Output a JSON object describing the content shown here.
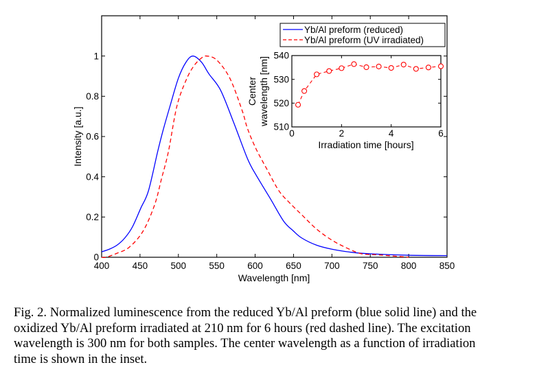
{
  "chart_data": [
    {
      "type": "line",
      "title": "",
      "xlabel": "Wavelength  [nm]",
      "ylabel": "Intensity  [a.u.]",
      "xlim": [
        400,
        850
      ],
      "ylim": [
        0,
        1.2
      ],
      "xticks": [
        400,
        450,
        500,
        550,
        600,
        650,
        700,
        750,
        800,
        850
      ],
      "xtick_labels": [
        "400",
        "450",
        "500",
        "550",
        "600",
        "650",
        "700",
        "750",
        "800",
        "850"
      ],
      "yticks": [
        0,
        0.2,
        0.4,
        0.6,
        0.8,
        1
      ],
      "ytick_labels": [
        "0",
        "0.2",
        "0.4",
        "0.6",
        "0.8",
        "1"
      ],
      "grid": false,
      "legend": {
        "placement": "top-right"
      },
      "series": [
        {
          "name": "Yb/Al preform (reduced)",
          "color": "#0000ff",
          "style": "solid",
          "x": [
            400,
            410,
            420,
            430,
            440,
            451,
            461,
            473,
            480,
            489,
            500,
            510,
            519,
            530,
            540,
            555,
            572,
            590,
            601,
            620,
            637,
            650,
            661,
            680,
            700,
            725,
            751,
            800,
            850
          ],
          "y": [
            0.027,
            0.04,
            0.06,
            0.095,
            0.15,
            0.244,
            0.33,
            0.525,
            0.63,
            0.75,
            0.89,
            0.97,
            1.0,
            0.97,
            0.91,
            0.83,
            0.67,
            0.49,
            0.41,
            0.29,
            0.18,
            0.13,
            0.095,
            0.06,
            0.04,
            0.025,
            0.017,
            0.01,
            0.008
          ]
        },
        {
          "name": "Yb/Al preform (UV irradiated)",
          "color": "#ff0000",
          "style": "dashed",
          "x": [
            400,
            406,
            420,
            436,
            454,
            469,
            478,
            487,
            498,
            510,
            520,
            530,
            537,
            550,
            567,
            583,
            590,
            601,
            615,
            631,
            645,
            661,
            680,
            700,
            720,
            739,
            760,
            800
          ],
          "y": [
            0.0,
            0.0,
            0.02,
            0.05,
            0.13,
            0.26,
            0.39,
            0.525,
            0.75,
            0.88,
            0.95,
            0.99,
            1.0,
            0.98,
            0.89,
            0.73,
            0.64,
            0.54,
            0.44,
            0.33,
            0.27,
            0.21,
            0.14,
            0.085,
            0.045,
            0.017,
            0.012,
            0.0
          ]
        }
      ]
    },
    {
      "type": "line",
      "title": "inset",
      "xlabel": "Irradiation time  [hours]",
      "ylabel_lines": [
        "Center",
        "wavelength  [nm]"
      ],
      "xlim": [
        0,
        6
      ],
      "ylim": [
        510,
        540
      ],
      "xticks": [
        0,
        2,
        4,
        6
      ],
      "xtick_labels": [
        "0",
        "2",
        "4",
        "6"
      ],
      "yticks": [
        510,
        520,
        530,
        540
      ],
      "ytick_labels": [
        "510",
        "520",
        "530",
        "540"
      ],
      "grid": false,
      "series": [
        {
          "name": "Center wavelength",
          "color": "#ff0000",
          "style": "dashed",
          "marker": "circle",
          "x": [
            0.25,
            0.5,
            1.0,
            1.5,
            2.0,
            2.5,
            3.0,
            3.5,
            4.0,
            4.5,
            5.0,
            5.5,
            6.0
          ],
          "y": [
            519.3,
            525.1,
            532.1,
            533.5,
            534.7,
            536.4,
            535.1,
            535.4,
            534.8,
            536.2,
            534.4,
            535.0,
            535.5
          ]
        }
      ]
    }
  ],
  "caption": {
    "lines": [
      "Fig. 2. Normalized luminescence from the reduced Yb/Al preform (blue solid line) and the",
      "oxidized Yb/Al preform irradiated at 210 nm for 6 hours (red dashed line). The excitation",
      "wavelength is 300 nm for both samples. The center wavelength as a function of irradiation",
      "time is shown in the inset."
    ]
  }
}
